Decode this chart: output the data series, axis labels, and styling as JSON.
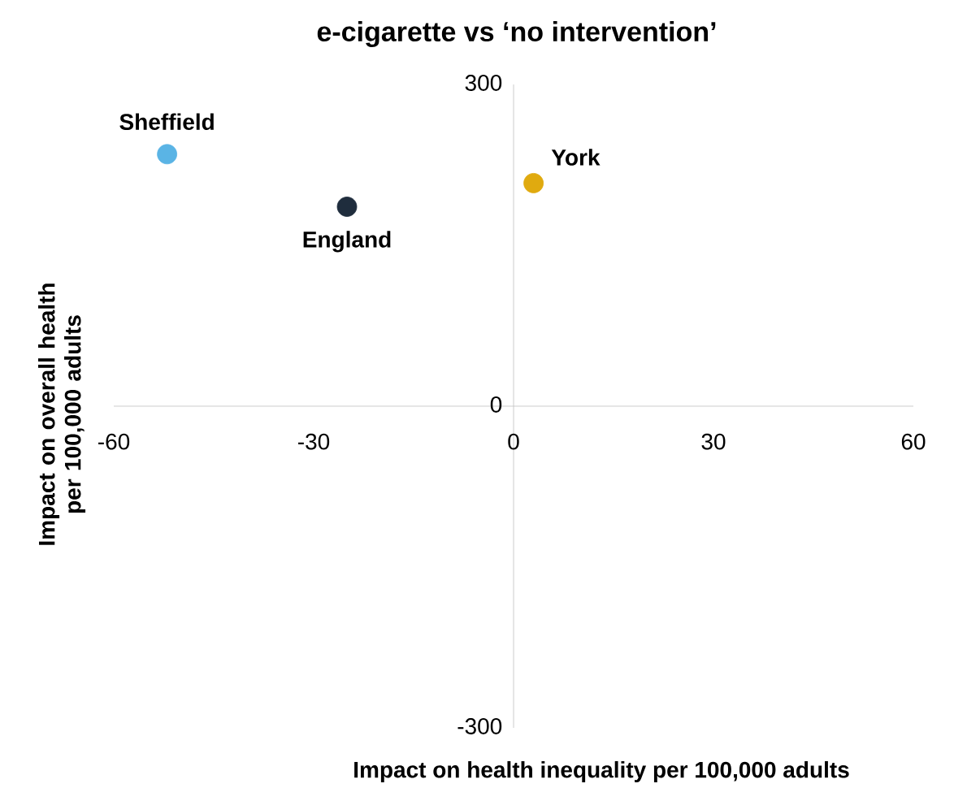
{
  "chart_data": {
    "type": "scatter",
    "title": "e-cigarette vs ‘no intervention’",
    "xlabel": "Impact on health inequality per 100,000 adults",
    "ylabel": "Impact on overall health per 100,000 adults",
    "xlim": [
      -60,
      60
    ],
    "ylim": [
      -300,
      300
    ],
    "xticks": [
      -60,
      -30,
      0,
      30,
      60
    ],
    "yticks": [
      -300,
      0,
      300
    ],
    "legend": false,
    "grid": false,
    "series": [
      {
        "name": "Sheffield",
        "color": "#5ab4e5",
        "x": [
          -52
        ],
        "values": [
          235
        ]
      },
      {
        "name": "England",
        "color": "#1f2d3d",
        "x": [
          -25
        ],
        "values": [
          186
        ]
      },
      {
        "name": "York",
        "color": "#e0aa0f",
        "x": [
          3
        ],
        "values": [
          208
        ]
      }
    ]
  }
}
